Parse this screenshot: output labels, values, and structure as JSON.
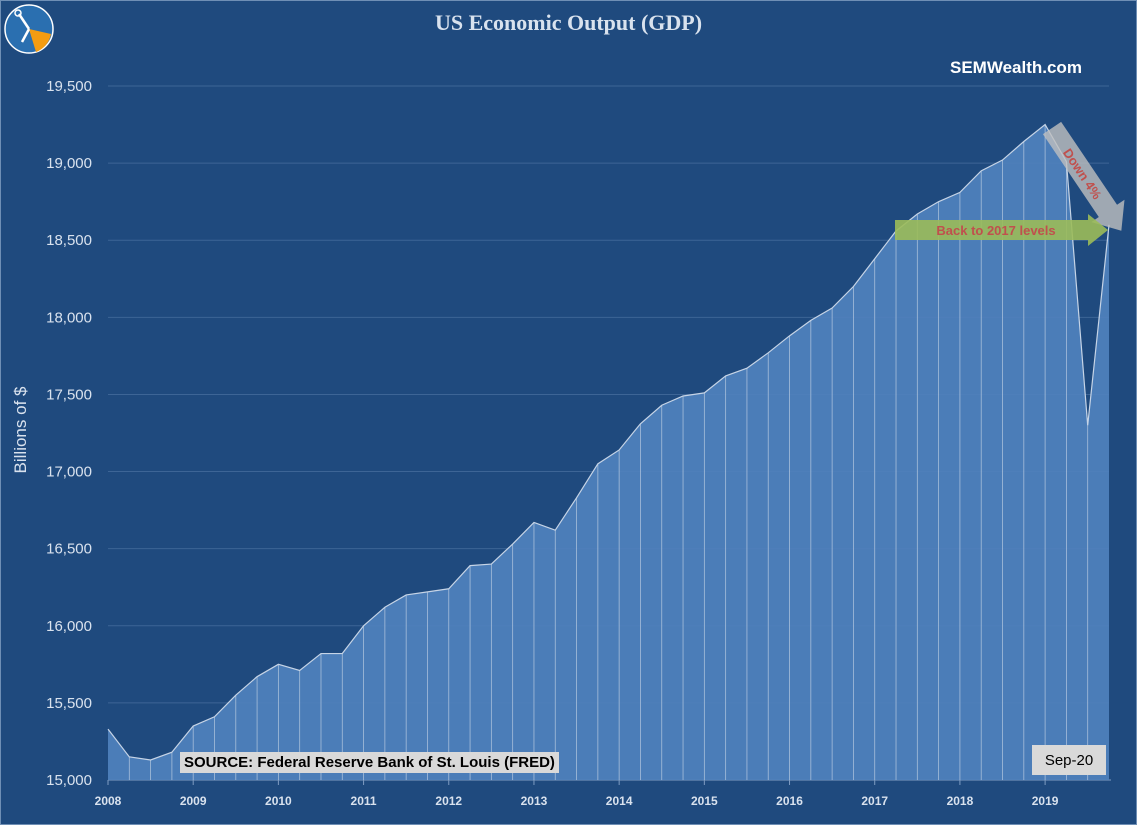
{
  "chart_data": {
    "type": "area",
    "title": "US Economic Output (GDP)",
    "xlabel": "",
    "ylabel": "Billions of $",
    "ylim": [
      15000,
      19750
    ],
    "yticks": [
      15000,
      15500,
      16000,
      16500,
      17000,
      17500,
      18000,
      18500,
      19000,
      19500
    ],
    "ytick_labels": [
      "15,000",
      "15,500",
      "16,000",
      "16,500",
      "17,000",
      "17,500",
      "18,000",
      "18,500",
      "19,000",
      "19,500"
    ],
    "xtick_labels": [
      "2008",
      "2009",
      "2010",
      "2011",
      "2012",
      "2013",
      "2014",
      "2015",
      "2016",
      "2017",
      "2018",
      "2019"
    ],
    "grid": true,
    "series": [
      {
        "name": "",
        "x_start": "2008-01",
        "frequency": "quarterly",
        "values": [
          15330,
          15150,
          15130,
          15180,
          15350,
          15410,
          15550,
          15670,
          15750,
          15710,
          15820,
          15820,
          16000,
          16120,
          16200,
          16220,
          16240,
          16390,
          16400,
          16530,
          16670,
          16620,
          16830,
          17050,
          17140,
          17310,
          17430,
          17490,
          17510,
          17620,
          17670,
          17770,
          17880,
          17980,
          18060,
          18200,
          18380,
          18560,
          18670,
          18750,
          18810,
          18950,
          19020,
          19140,
          19250,
          19010,
          17300,
          18600
        ]
      }
    ],
    "annotations": [
      "Down 4%",
      "Back to 2017 levels"
    ]
  },
  "colors": {
    "background": "#1f4a7e",
    "area_fill": "#4f81bd",
    "area_line": "#c6d4e6",
    "annotation_text": "#c0504d",
    "green_arrow": "#9bbb59",
    "gray_arrow": "#bfbfbf"
  },
  "branding": {
    "site": "SEMWealth.com",
    "logo_icon": "compass-logo-icon"
  },
  "source_label": "SOURCE: Federal Reserve Bank of St. Louis (FRED)",
  "period_label": "Sep-20"
}
